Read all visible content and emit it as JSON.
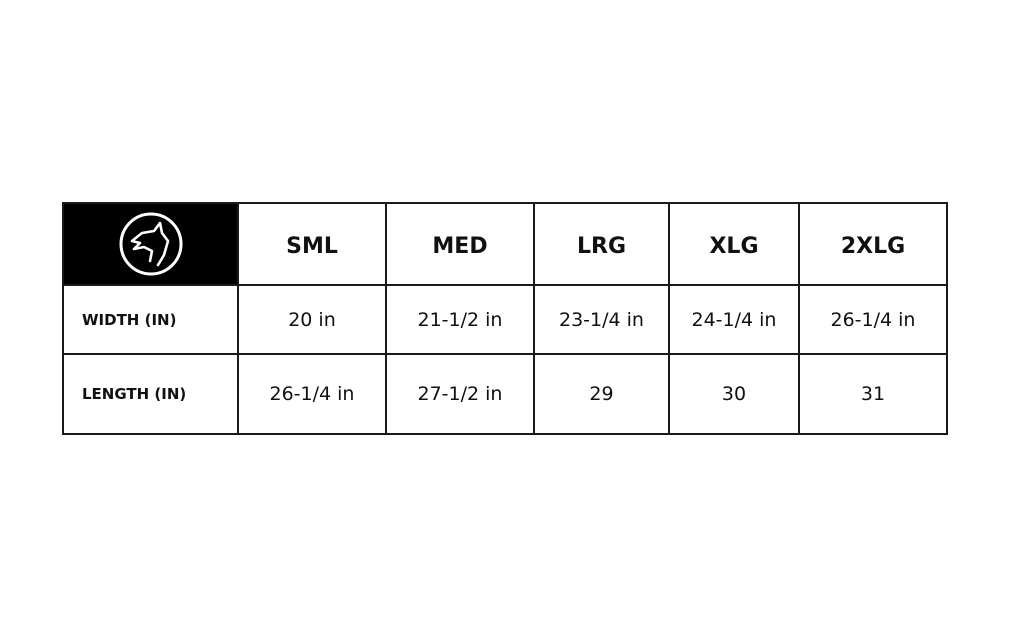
{
  "header": {
    "logo_icon": "howling-wolf-icon",
    "sizes": [
      "SML",
      "MED",
      "LRG",
      "XLG",
      "2XLG"
    ]
  },
  "rows": [
    {
      "label": "WIDTH (IN)",
      "values": [
        "20 in",
        "21-1/2 in",
        "23-1/4 in",
        "24-1/4 in",
        "26-1/4 in"
      ]
    },
    {
      "label": "LENGTH (IN)",
      "values": [
        "26-1/4 in",
        "27-1/2 in",
        "29",
        "30",
        "31"
      ]
    }
  ]
}
